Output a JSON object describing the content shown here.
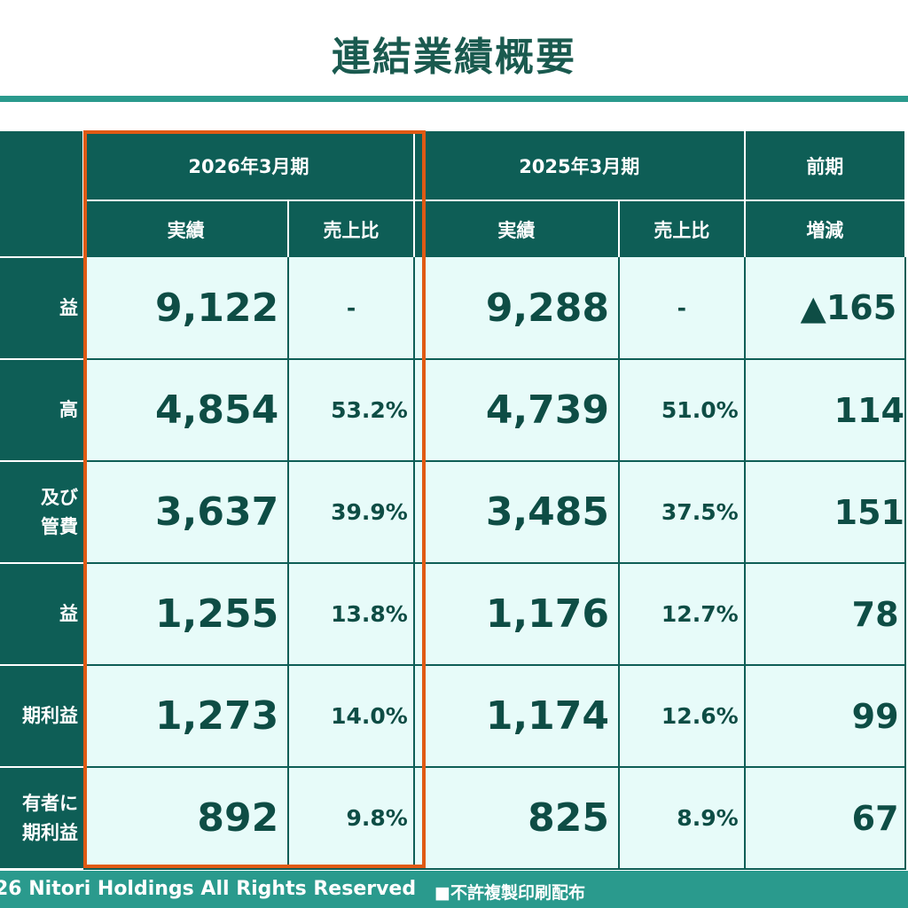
{
  "slide": {
    "title": "連結業績概要",
    "footer_copyright": "26 Nitori Holdings All Rights Reserved",
    "footer_notice": "■不許複製印刷配布",
    "accent_color": "#2a9a8d",
    "header_color": "#0e5e56",
    "highlight_color": "#e05a14"
  },
  "table": {
    "periods": [
      {
        "label": "2026年3月期"
      },
      {
        "label": "2025年3月期"
      },
      {
        "label": "前期"
      }
    ],
    "sub_headers": {
      "actual": "実績",
      "sales_ratio": "売上比",
      "change": "増減"
    },
    "rows": [
      {
        "label": "益",
        "fy2026": "9,122",
        "fy2026_ratio": "-",
        "fy2025": "9,288",
        "fy2025_ratio": "-",
        "change": "▲165"
      },
      {
        "label": "高",
        "fy2026": "4,854",
        "fy2026_ratio": "53.2%",
        "fy2025": "4,739",
        "fy2025_ratio": "51.0%",
        "change": "114"
      },
      {
        "label": "及び",
        "label2": "管費",
        "fy2026": "3,637",
        "fy2026_ratio": "39.9%",
        "fy2025": "3,485",
        "fy2025_ratio": "37.5%",
        "change": "151"
      },
      {
        "label": "益",
        "fy2026": "1,255",
        "fy2026_ratio": "13.8%",
        "fy2025": "1,176",
        "fy2025_ratio": "12.7%",
        "change": "78"
      },
      {
        "label": "期利益",
        "fy2026": "1,273",
        "fy2026_ratio": "14.0%",
        "fy2025": "1,174",
        "fy2025_ratio": "12.6%",
        "change": "99"
      },
      {
        "label": "有者に",
        "label2": "期利益",
        "fy2026": "892",
        "fy2026_ratio": "9.8%",
        "fy2025": "825",
        "fy2025_ratio": "8.9%",
        "change": "67"
      }
    ]
  }
}
